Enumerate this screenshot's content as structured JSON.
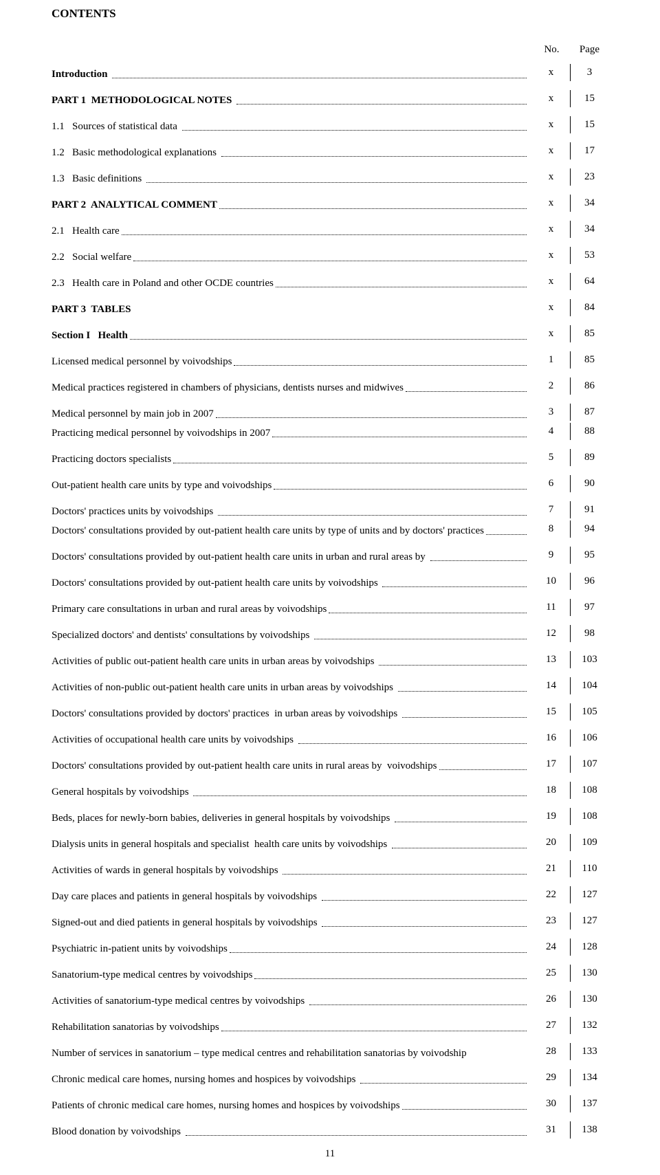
{
  "title": "CONTENTS",
  "headers": {
    "no": "No.",
    "page": "Page"
  },
  "page_number": "11",
  "colors": {
    "text": "#000000",
    "background": "#ffffff"
  },
  "typography": {
    "font_family": "Times New Roman",
    "base_size_pt": 15
  },
  "rows": [
    {
      "label": "Introduction ",
      "bold": true,
      "leader": true,
      "no": "x",
      "page": "3",
      "tight": false
    },
    {
      "label": "PART 1  METHODOLOGICAL NOTES ",
      "bold": true,
      "leader": true,
      "no": "x",
      "page": "15",
      "tight": false
    },
    {
      "label": "1.1   Sources of statistical data ",
      "bold": false,
      "leader": true,
      "no": "x",
      "page": "15",
      "tight": false
    },
    {
      "label": "1.2   Basic methodological explanations ",
      "bold": false,
      "leader": true,
      "no": "x",
      "page": "17",
      "tight": false
    },
    {
      "label": "1.3   Basic definitions ",
      "bold": false,
      "leader": true,
      "no": "x",
      "page": "23",
      "tight": false
    },
    {
      "label": "PART 2  ANALYTICAL COMMENT",
      "bold": true,
      "leader": true,
      "no": "x",
      "page": "34",
      "tight": false
    },
    {
      "label": "2.1   Health care",
      "bold": false,
      "leader": true,
      "no": "x",
      "page": "34",
      "tight": false
    },
    {
      "label": "2.2   Social welfare",
      "bold": false,
      "leader": true,
      "no": "x",
      "page": "53",
      "tight": false
    },
    {
      "label": "2.3   Health care in Poland and other OCDE countries",
      "bold": false,
      "leader": true,
      "no": "x",
      "page": "64",
      "tight": false
    },
    {
      "label": "PART 3  TABLES",
      "bold": true,
      "leader": false,
      "no": "x",
      "page": "84",
      "tight": false
    },
    {
      "label": "Section I   Health",
      "bold": true,
      "leader": true,
      "no": "x",
      "page": "85",
      "tight": false
    },
    {
      "label": "Licensed medical personnel by voivodships",
      "bold": false,
      "leader": true,
      "no": "1",
      "page": "85",
      "tight": false
    },
    {
      "label": "Medical practices registered in chambers of physicians, dentists nurses and midwives",
      "bold": false,
      "leader": true,
      "no": "2",
      "page": "86",
      "tight": false
    },
    {
      "label": "Medical personnel by main job in 2007",
      "bold": false,
      "leader": true,
      "no": "3",
      "page": "87",
      "tight": true
    },
    {
      "label": "Practicing medical personnel by voivodships in 2007",
      "bold": false,
      "leader": true,
      "no": "4",
      "page": "88",
      "tight": false
    },
    {
      "label": "Practicing doctors specialists",
      "bold": false,
      "leader": true,
      "no": "5",
      "page": "89",
      "tight": false
    },
    {
      "label": "Out-patient health care units by type and voivodships",
      "bold": false,
      "leader": true,
      "no": "6",
      "page": "90",
      "tight": false
    },
    {
      "label": "Doctors' practices units by voivodships ",
      "bold": false,
      "leader": true,
      "no": "7",
      "page": "91",
      "tight": true
    },
    {
      "label": "Doctors' consultations provided by out-patient health care units by type of units and by doctors' practices",
      "bold": false,
      "leader": true,
      "no": "8",
      "page": "94",
      "tight": false,
      "justify": true
    },
    {
      "label": "Doctors' consultations provided by out-patient health care units in urban and rural areas by ",
      "bold": false,
      "leader": true,
      "no": "9",
      "page": "95",
      "tight": false
    },
    {
      "label": "Doctors' consultations provided by out-patient health care units by voivodships ",
      "bold": false,
      "leader": true,
      "no": "10",
      "page": "96",
      "tight": false
    },
    {
      "label": "Primary care consultations in urban and rural areas by voivodships",
      "bold": false,
      "leader": true,
      "no": "11",
      "page": "97",
      "tight": false
    },
    {
      "label": "Specialized doctors' and dentists' consultations by voivodships ",
      "bold": false,
      "leader": true,
      "no": "12",
      "page": "98",
      "tight": false
    },
    {
      "label": "Activities of public out-patient health care units in urban areas by voivodships ",
      "bold": false,
      "leader": true,
      "no": "13",
      "page": "103",
      "tight": false
    },
    {
      "label": "Activities of non-public out-patient health care units in urban areas by voivodships ",
      "bold": false,
      "leader": true,
      "no": "14",
      "page": "104",
      "tight": false
    },
    {
      "label": "Doctors' consultations provided by doctors' practices  in urban areas by voivodships ",
      "bold": false,
      "leader": true,
      "no": "15",
      "page": "105",
      "tight": false
    },
    {
      "label": "Activities of occupational health care units by voivodships ",
      "bold": false,
      "leader": true,
      "no": "16",
      "page": "106",
      "tight": false
    },
    {
      "label": "Doctors' consultations provided by out-patient health care units in rural areas by  voivodships",
      "bold": false,
      "leader": true,
      "no": "17",
      "page": "107",
      "tight": false
    },
    {
      "label": "General hospitals by voivodships ",
      "bold": false,
      "leader": true,
      "no": "18",
      "page": "108",
      "tight": false
    },
    {
      "label": "Beds, places for newly-born babies, deliveries in general hospitals by voivodships ",
      "bold": false,
      "leader": true,
      "no": "19",
      "page": "108",
      "tight": false
    },
    {
      "label": "Dialysis units in general hospitals and specialist  health care units by voivodships ",
      "bold": false,
      "leader": true,
      "no": "20",
      "page": "109",
      "tight": false
    },
    {
      "label": "Activities of wards in general hospitals by voivodships ",
      "bold": false,
      "leader": true,
      "no": "21",
      "page": "110",
      "tight": false
    },
    {
      "label": "Day care places and patients in general hospitals by voivodships ",
      "bold": false,
      "leader": true,
      "no": "22",
      "page": "127",
      "tight": false
    },
    {
      "label": "Signed-out and died patients in general hospitals by voivodships ",
      "bold": false,
      "leader": true,
      "no": "23",
      "page": "127",
      "tight": false
    },
    {
      "label": "Psychiatric in-patient units by voivodships",
      "bold": false,
      "leader": true,
      "no": "24",
      "page": "128",
      "tight": false
    },
    {
      "label": "Sanatorium-type medical centres by voivodships",
      "bold": false,
      "leader": true,
      "no": "25",
      "page": "130",
      "tight": false
    },
    {
      "label": "Activities of sanatorium-type medical centres by voivodships ",
      "bold": false,
      "leader": true,
      "no": "26",
      "page": "130",
      "tight": false
    },
    {
      "label": "Rehabilitation sanatorias by voivodships",
      "bold": false,
      "leader": true,
      "no": "27",
      "page": "132",
      "tight": false
    },
    {
      "label": "Number of services in sanatorium – type medical centres and rehabilitation sanatorias by voivodship",
      "bold": false,
      "leader": false,
      "no": "28",
      "page": "133",
      "tight": false
    },
    {
      "label": "Chronic medical care homes, nursing homes and hospices by voivodships ",
      "bold": false,
      "leader": true,
      "no": "29",
      "page": "134",
      "tight": false
    },
    {
      "label": "Patients of chronic medical care homes, nursing homes and hospices by voivodships",
      "bold": false,
      "leader": true,
      "no": "30",
      "page": "137",
      "tight": false
    },
    {
      "label": "Blood donation by voivodships ",
      "bold": false,
      "leader": true,
      "no": "31",
      "page": "138",
      "tight": false
    }
  ]
}
